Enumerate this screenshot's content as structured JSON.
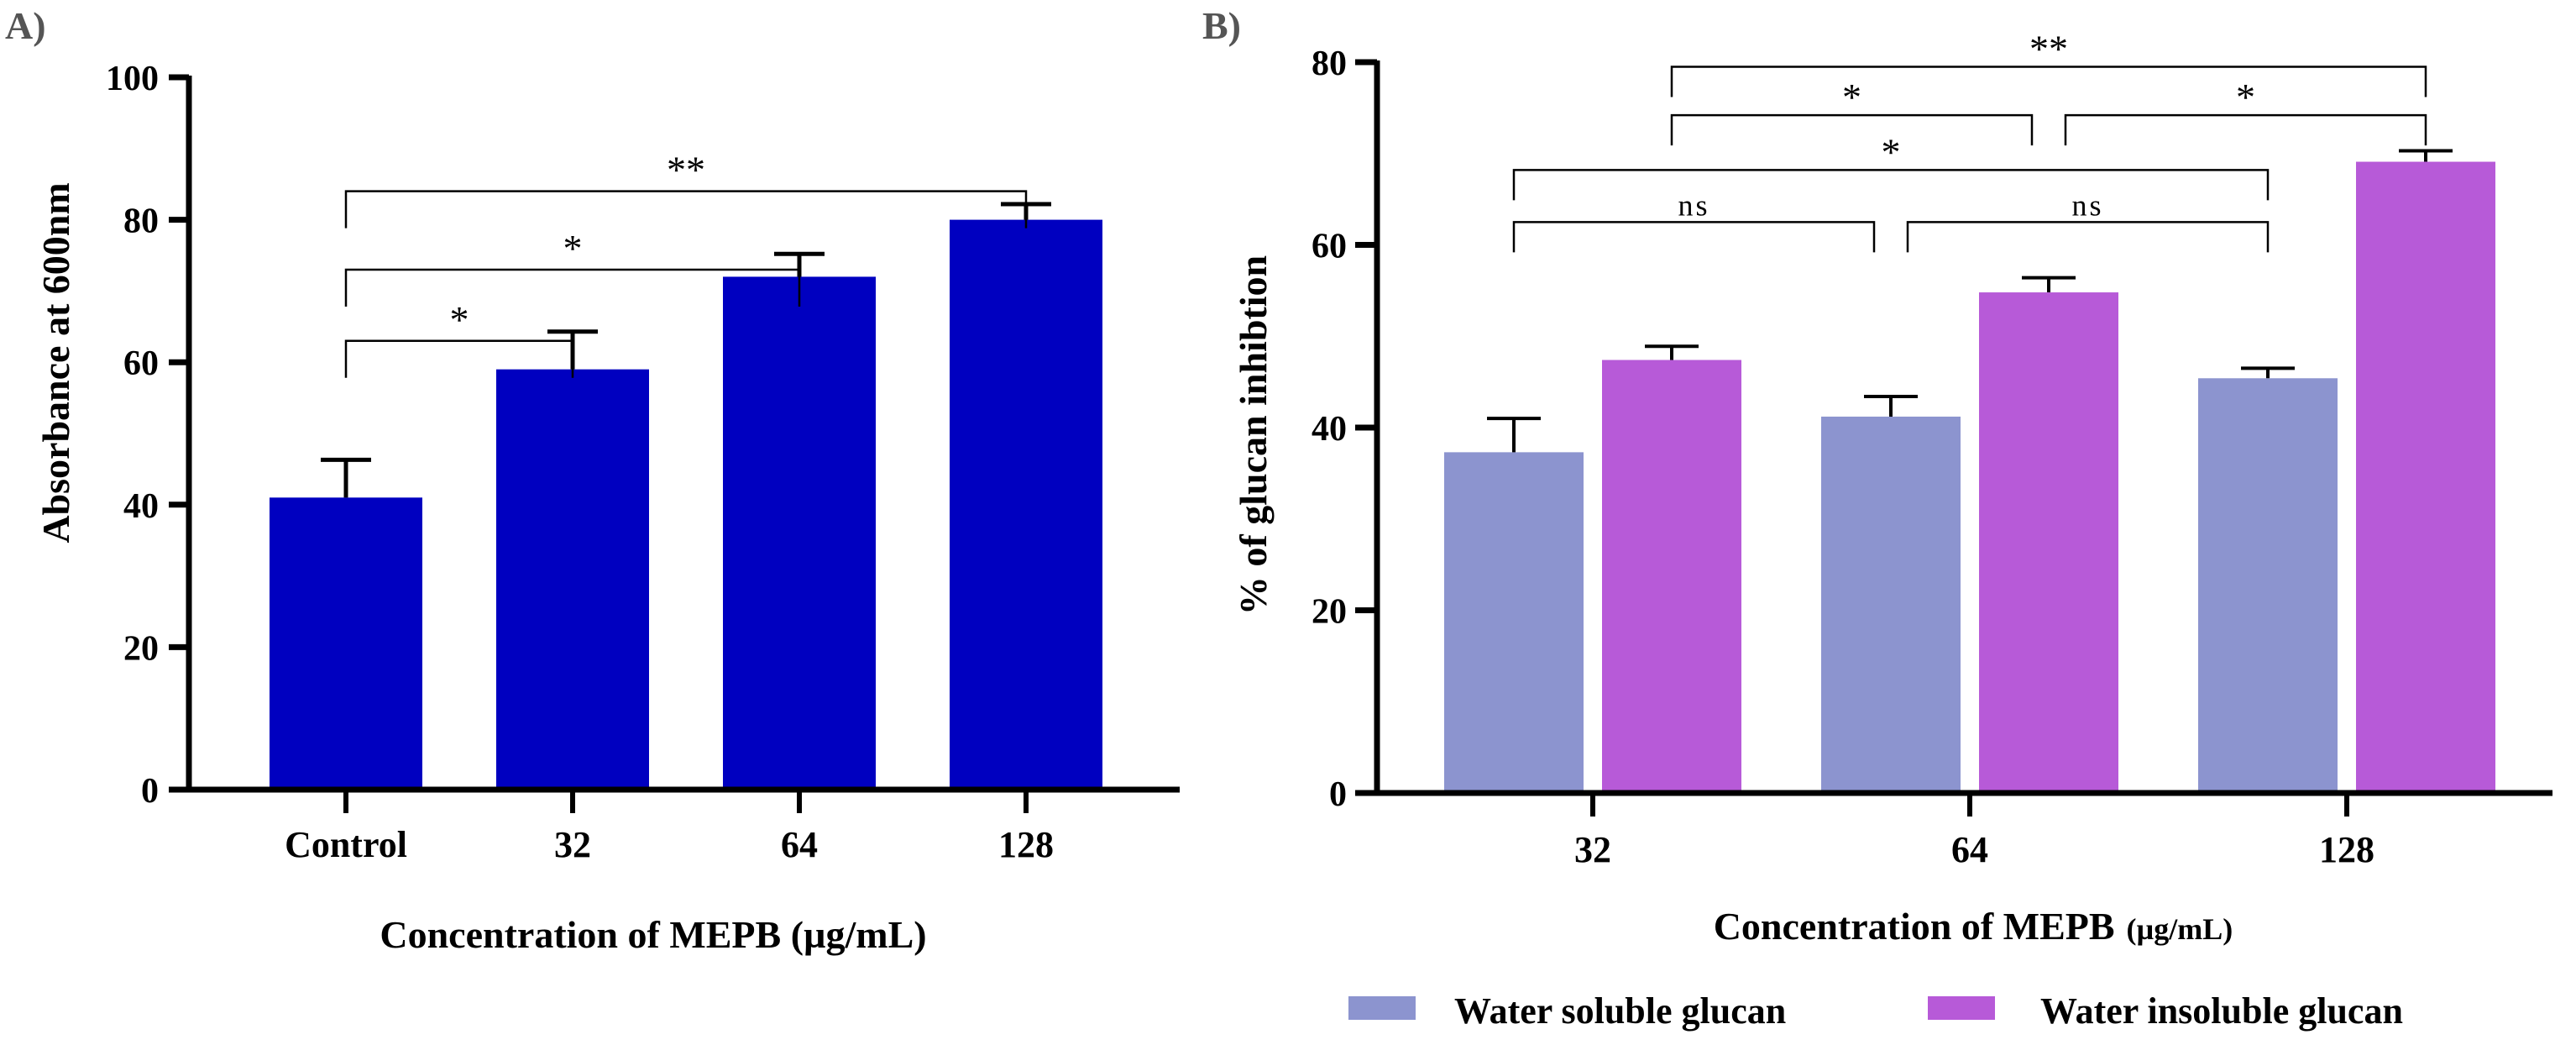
{
  "chart_data": [
    {
      "panel": "A)",
      "type": "bar",
      "xlabel": "Concentration of MEPB (µg/mL)",
      "ylabel": "Absorbance at 600nm",
      "ylim": [
        0,
        100
      ],
      "yticks": [
        "0",
        "20",
        "40",
        "60",
        "80",
        "100"
      ],
      "categories": [
        "Control",
        "32",
        "64",
        "128"
      ],
      "values": [
        41,
        59,
        72,
        80
      ],
      "errors": [
        5.3,
        5.3,
        3.2,
        2.2
      ],
      "color": "#0000c0",
      "significance": [
        {
          "from": 0,
          "to": 1,
          "label": "*",
          "level": 63
        },
        {
          "from": 0,
          "to": 2,
          "label": "*",
          "level": 73
        },
        {
          "from": 0,
          "to": 3,
          "label": "**",
          "level": 84
        }
      ]
    },
    {
      "panel": "B)",
      "type": "bar",
      "xlabel": "Concentration of MEPB",
      "xlabel_unit": "(µg/mL)",
      "ylabel": "% of glucan inhibtion",
      "ylim": [
        0,
        80
      ],
      "yticks": [
        "0",
        "20",
        "40",
        "60",
        "80"
      ],
      "categories": [
        "32",
        "64",
        "128"
      ],
      "series": [
        {
          "name": "Water soluble glucan",
          "values": [
            37.3,
            41.2,
            45.4
          ],
          "errors": [
            3.7,
            2.2,
            1.1
          ],
          "color": "#8c94cf"
        },
        {
          "name": "Water insoluble glucan",
          "values": [
            47.4,
            54.8,
            69.1
          ],
          "errors": [
            1.5,
            1.6,
            1.2
          ],
          "color": "#b75ad8"
        }
      ],
      "significance": [
        {
          "label": "ns",
          "level": 62.5,
          "from": [
            0,
            0
          ],
          "to": [
            1,
            0
          ]
        },
        {
          "label": "ns",
          "level": 62.5,
          "from": [
            1,
            0
          ],
          "to": [
            2,
            0
          ]
        },
        {
          "label": "*",
          "level": 68.2,
          "from": [
            0,
            0
          ],
          "to": [
            2,
            0
          ]
        },
        {
          "label": "*",
          "level": 74.2,
          "from": [
            0,
            1
          ],
          "to": [
            1,
            1
          ]
        },
        {
          "label": "*",
          "level": 74.2,
          "from": [
            1,
            1
          ],
          "to": [
            2,
            1
          ]
        },
        {
          "label": "**",
          "level": 79.5,
          "from": [
            0,
            1
          ],
          "to": [
            2,
            1
          ]
        }
      ]
    }
  ]
}
